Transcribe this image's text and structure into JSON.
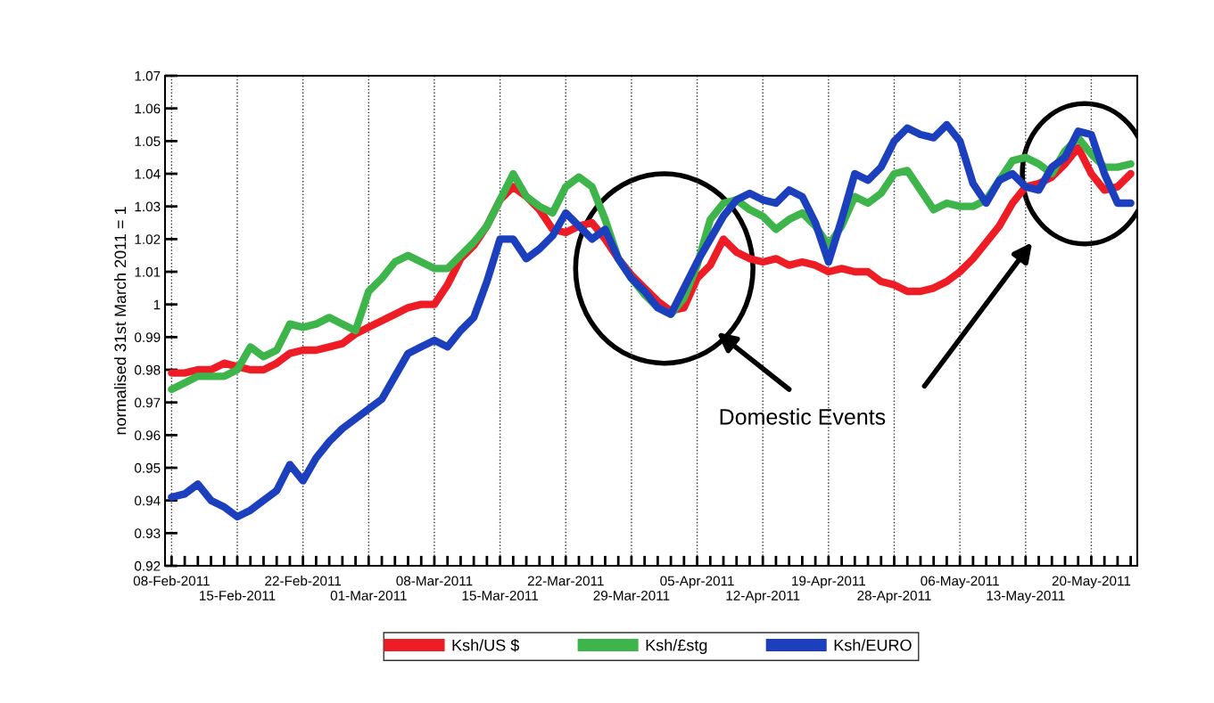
{
  "chart_data": {
    "type": "line",
    "ylabel": "normalised 31st March 2011 = 1",
    "categories": [
      "08-Feb-2011",
      null,
      null,
      null,
      null,
      "15-Feb-2011",
      null,
      null,
      null,
      null,
      "22-Feb-2011",
      null,
      null,
      null,
      null,
      "01-Mar-2011",
      null,
      null,
      null,
      null,
      "08-Mar-2011",
      null,
      null,
      null,
      null,
      "15-Mar-2011",
      null,
      null,
      null,
      null,
      "22-Mar-2011",
      null,
      null,
      null,
      null,
      "29-Mar-2011",
      null,
      null,
      null,
      null,
      "05-Apr-2011",
      null,
      null,
      null,
      null,
      "12-Apr-2011",
      null,
      null,
      null,
      null,
      "19-Apr-2011",
      null,
      null,
      null,
      null,
      "28-Apr-2011",
      null,
      null,
      null,
      null,
      "06-May-2011",
      null,
      null,
      null,
      null,
      "13-May-2011",
      null,
      null,
      null,
      null,
      "20-May-2011",
      null,
      null,
      null
    ],
    "series": [
      {
        "name": "Ksh/US $",
        "color": "#ee1c25",
        "values": [
          0.979,
          0.979,
          0.98,
          0.98,
          0.982,
          0.981,
          0.98,
          0.98,
          0.982,
          0.985,
          0.986,
          0.986,
          0.987,
          0.988,
          0.991,
          0.993,
          0.995,
          0.997,
          0.999,
          1.0,
          1.0,
          1.006,
          1.014,
          1.018,
          1.024,
          1.032,
          1.036,
          1.033,
          1.029,
          1.023,
          1.022,
          1.024,
          1.025,
          1.02,
          1.014,
          1.009,
          1.005,
          1.001,
          0.998,
          0.999,
          1.008,
          1.012,
          1.02,
          1.016,
          1.014,
          1.013,
          1.014,
          1.012,
          1.013,
          1.012,
          1.01,
          1.011,
          1.01,
          1.01,
          1.007,
          1.006,
          1.004,
          1.004,
          1.005,
          1.007,
          1.01,
          1.014,
          1.019,
          1.024,
          1.031,
          1.036,
          1.037,
          1.039,
          1.043,
          1.048,
          1.04,
          1.035,
          1.036,
          1.04
        ]
      },
      {
        "name": "Ksh/£stg",
        "color": "#3db54a",
        "values": [
          0.974,
          0.976,
          0.978,
          0.978,
          0.978,
          0.98,
          0.987,
          0.984,
          0.986,
          0.994,
          0.993,
          0.994,
          0.996,
          0.994,
          0.992,
          1.004,
          1.008,
          1.013,
          1.015,
          1.013,
          1.011,
          1.011,
          1.015,
          1.019,
          1.024,
          1.032,
          1.04,
          1.033,
          1.03,
          1.028,
          1.036,
          1.039,
          1.036,
          1.026,
          1.014,
          1.008,
          1.003,
          0.999,
          0.997,
          1.002,
          1.012,
          1.026,
          1.031,
          1.032,
          1.029,
          1.027,
          1.023,
          1.026,
          1.028,
          1.024,
          1.018,
          1.024,
          1.033,
          1.031,
          1.034,
          1.04,
          1.041,
          1.035,
          1.029,
          1.031,
          1.03,
          1.03,
          1.032,
          1.038,
          1.044,
          1.045,
          1.043,
          1.04,
          1.047,
          1.051,
          1.046,
          1.042,
          1.042,
          1.043
        ]
      },
      {
        "name": "Ksh/EURO",
        "color": "#1c3fbd",
        "values": [
          0.941,
          0.942,
          0.945,
          0.94,
          0.938,
          0.935,
          0.937,
          0.94,
          0.943,
          0.951,
          0.946,
          0.953,
          0.958,
          0.962,
          0.965,
          0.968,
          0.971,
          0.978,
          0.985,
          0.987,
          0.989,
          0.987,
          0.992,
          0.996,
          1.007,
          1.02,
          1.02,
          1.014,
          1.017,
          1.021,
          1.028,
          1.024,
          1.02,
          1.023,
          1.014,
          1.008,
          1.004,
          0.999,
          0.997,
          1.005,
          1.013,
          1.02,
          1.027,
          1.032,
          1.034,
          1.032,
          1.031,
          1.035,
          1.033,
          1.025,
          1.013,
          1.026,
          1.04,
          1.038,
          1.042,
          1.05,
          1.054,
          1.052,
          1.051,
          1.055,
          1.05,
          1.037,
          1.031,
          1.038,
          1.04,
          1.036,
          1.035,
          1.042,
          1.045,
          1.053,
          1.052,
          1.04,
          1.031,
          1.031
        ]
      }
    ],
    "ylim": [
      0.92,
      1.07
    ],
    "yticks": [
      0.92,
      0.93,
      0.94,
      0.95,
      0.96,
      0.97,
      0.98,
      0.99,
      1,
      1.01,
      1.02,
      1.03,
      1.04,
      1.05,
      1.06,
      1.07
    ],
    "grid": "x",
    "legend": "bottom",
    "marker": "none",
    "line_style": "solid",
    "annotations": [
      "Domestic Events"
    ]
  }
}
